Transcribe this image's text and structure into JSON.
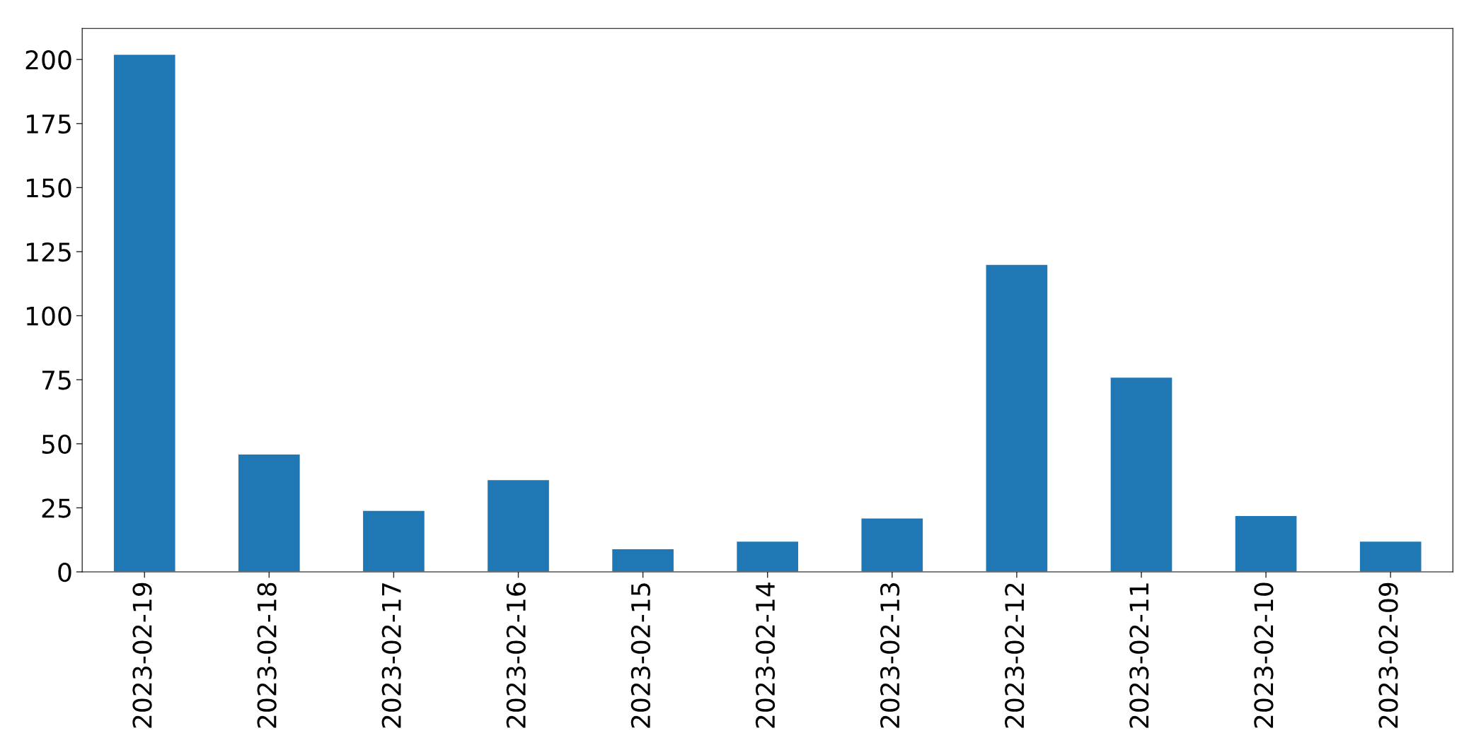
{
  "chart_data": {
    "type": "bar",
    "categories": [
      "2023-02-19",
      "2023-02-18",
      "2023-02-17",
      "2023-02-16",
      "2023-02-15",
      "2023-02-14",
      "2023-02-13",
      "2023-02-12",
      "2023-02-11",
      "2023-02-10",
      "2023-02-09"
    ],
    "values": [
      202,
      46,
      24,
      36,
      9,
      12,
      21,
      120,
      76,
      22,
      12
    ],
    "color": "#1f77b4",
    "ylim": [
      0,
      212.1
    ],
    "yticks": [
      0,
      25,
      50,
      75,
      100,
      125,
      150,
      175,
      200
    ],
    "grid": false
  }
}
